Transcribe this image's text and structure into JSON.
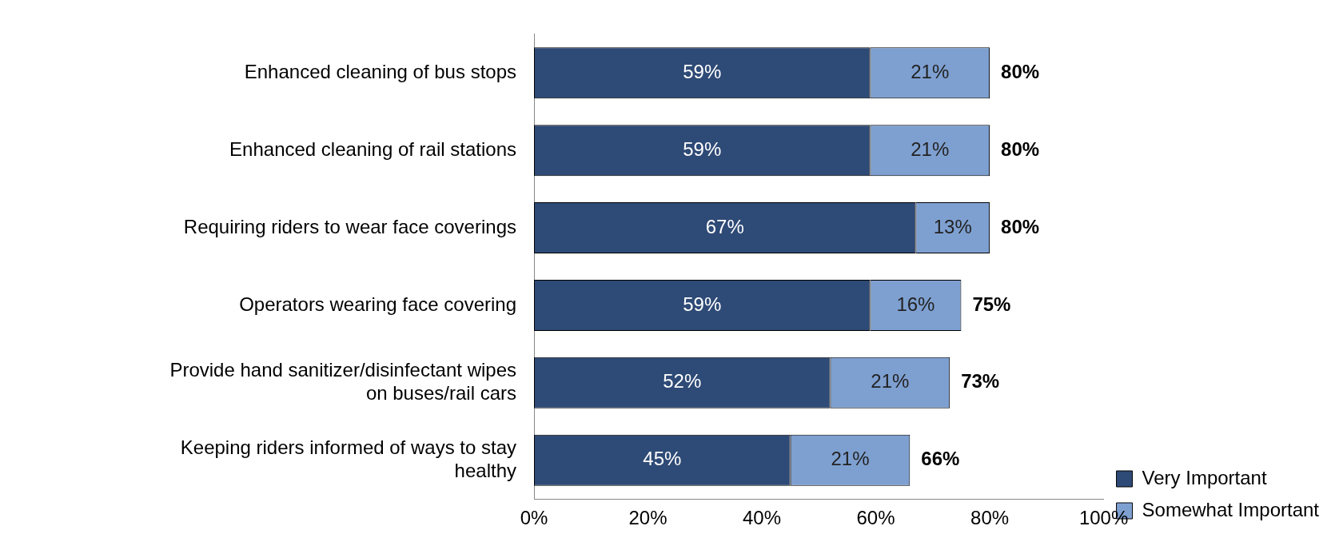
{
  "chart_data": {
    "type": "bar",
    "orientation": "horizontal",
    "stacked": true,
    "categories": [
      "Enhanced cleaning of bus stops",
      "Enhanced cleaning of rail stations",
      "Requiring riders to wear face coverings",
      "Operators wearing face covering",
      "Provide hand sanitizer/disinfectant wipes on buses/rail cars",
      "Keeping riders informed of ways to stay healthy"
    ],
    "series": [
      {
        "name": "Very Important",
        "color": "#2e4a76",
        "values": [
          59,
          59,
          67,
          59,
          52,
          45
        ],
        "value_labels": [
          "59%",
          "59%",
          "67%",
          "59%",
          "52%",
          "45%"
        ]
      },
      {
        "name": "Somewhat Important",
        "color": "#7ea0d1",
        "values": [
          21,
          21,
          13,
          16,
          21,
          21
        ],
        "value_labels": [
          "21%",
          "21%",
          "13%",
          "16%",
          "21%",
          "21%"
        ]
      }
    ],
    "totals": [
      "80%",
      "80%",
      "80%",
      "75%",
      "73%",
      "66%"
    ],
    "xlim": [
      0,
      100
    ],
    "xticks": [
      {
        "value": 0,
        "label": "0%"
      },
      {
        "value": 20,
        "label": "20%"
      },
      {
        "value": 40,
        "label": "40%"
      },
      {
        "value": 60,
        "label": "60%"
      },
      {
        "value": 80,
        "label": "80%"
      },
      {
        "value": 100,
        "label": "100%"
      }
    ],
    "grid": false,
    "legend": "right"
  }
}
